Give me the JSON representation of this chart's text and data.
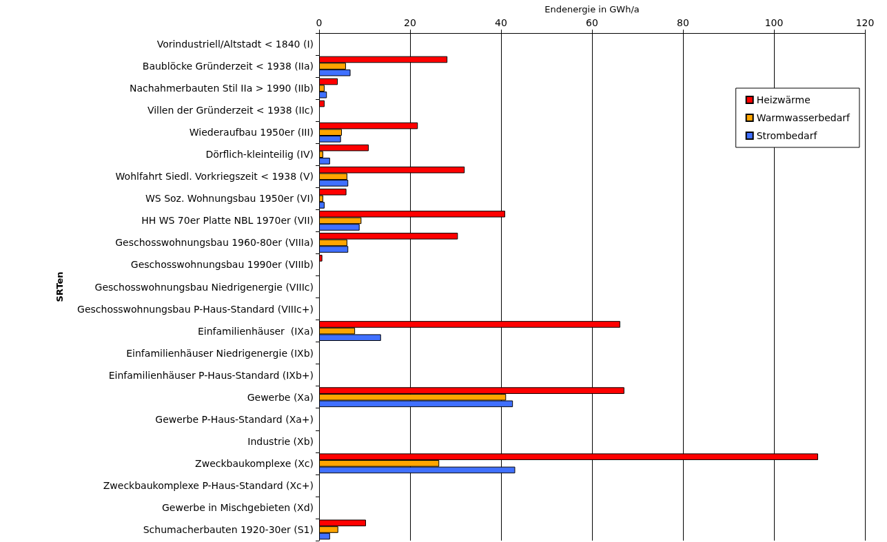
{
  "chart_data": {
    "type": "bar",
    "orientation": "horizontal",
    "xlabel": "Endenergie in GWh/a",
    "ylabel": "SRTen",
    "categories": [
      "Vorindustriell/Altstadt < 1840 (I)",
      "Baublöcke Gründerzeit < 1938 (IIa)",
      "Nachahmerbauten Stil IIa > 1990 (IIb)",
      "Villen der Gründerzeit < 1938 (IIc)",
      "Wiederaufbau 1950er (III)",
      "Dörflich-kleinteilig (IV)",
      "Wohlfahrt Siedl. Vorkriegszeit < 1938 (V)",
      "WS Soz. Wohnungsbau 1950er (VI)",
      "HH WS 70er Platte NBL 1970er (VII)",
      "Geschosswohnungsbau 1960-80er (VIIIa)",
      "Geschosswohnungsbau 1990er (VIIIb)",
      "Geschosswohnungsbau Niedrigenergie (VIIIc)",
      "Geschosswohnungsbau P-Haus-Standard (VIIIc+)",
      "Einfamilienhäuser  (IXa)",
      "Einfamilienhäuser Niedrigenergie (IXb)",
      "Einfamilienhäuser P-Haus-Standard (IXb+)",
      "Gewerbe (Xa)",
      "Gewerbe P-Haus-Standard (Xa+)",
      "Industrie (Xb)",
      "Zweckbaukomplexe (Xc)",
      "Zweckbaukomplexe P-Haus-Standard (Xc+)",
      "Gewerbe in Mischgebieten (Xd)",
      "Schumacherbauten 1920-30er (S1)"
    ],
    "series": [
      {
        "name": "Heizwärme",
        "color": "#ff0000",
        "values": [
          null,
          28.2,
          4.1,
          1.2,
          21.7,
          10.9,
          32.0,
          6.0,
          40.9,
          30.5,
          0.7,
          null,
          null,
          66.2,
          null,
          null,
          67.1,
          null,
          null,
          109.7,
          null,
          null,
          10.3
        ]
      },
      {
        "name": "Warmwasserbedarf",
        "color": "#ffa500",
        "values": [
          null,
          5.9,
          1.2,
          null,
          5.0,
          0.9,
          6.2,
          0.9,
          9.3,
          6.2,
          null,
          null,
          null,
          7.9,
          null,
          null,
          41.1,
          null,
          null,
          26.4,
          null,
          null,
          4.2
        ]
      },
      {
        "name": "Strombedarf",
        "color": "#4070ff",
        "values": [
          null,
          6.9,
          1.7,
          null,
          4.8,
          2.4,
          6.4,
          1.2,
          8.9,
          6.4,
          null,
          null,
          null,
          13.6,
          null,
          null,
          42.6,
          null,
          null,
          43.1,
          null,
          null,
          2.4
        ]
      }
    ],
    "xlim": [
      0,
      120
    ],
    "xticks": [
      0,
      20,
      40,
      60,
      80,
      100,
      120
    ],
    "grid": "x",
    "legend": "top right"
  }
}
